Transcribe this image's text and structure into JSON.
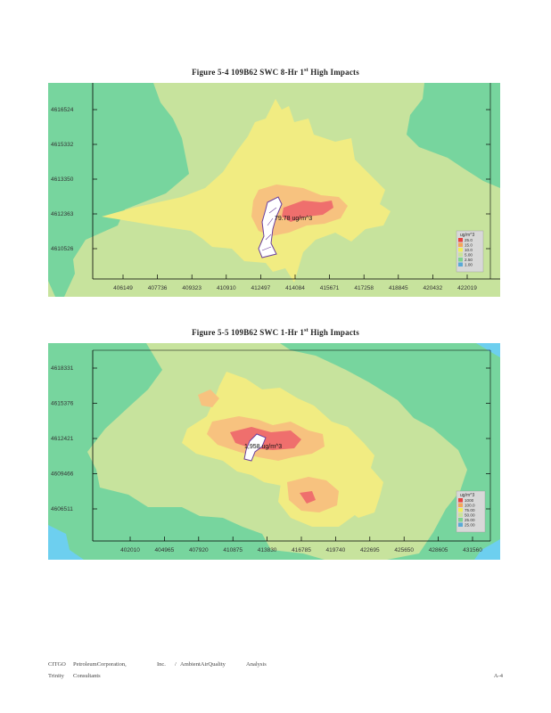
{
  "figures": [
    {
      "title_prefix": "Figure 5-4 109B62 SWC 8-Hr 1",
      "title_sup": "st",
      "title_suffix": " High Impacts",
      "y_ticks": [
        "4616524",
        "4615332",
        "4613350",
        "4612363",
        "4610526"
      ],
      "x_ticks": [
        "406149",
        "407736",
        "409323",
        "410910",
        "412497",
        "414084",
        "415671",
        "417258",
        "418845",
        "420432",
        "422019"
      ],
      "peak_label": "79.78 ug/m^3",
      "legend": {
        "title": "ug/m^3",
        "items": [
          {
            "label": "25.0",
            "color": "#e8413f"
          },
          {
            "label": "15.0",
            "color": "#f4a55a"
          },
          {
            "label": "10.0",
            "color": "#eeee5a"
          },
          {
            "label": "5.00",
            "color": "#c9e39a"
          },
          {
            "label": "2.50",
            "color": "#7ed38f"
          },
          {
            "label": "1.00",
            "color": "#5aa9d6"
          }
        ]
      },
      "colors": {
        "bg": "#77d59e",
        "c1": "#c7e39d",
        "c2": "#f1ec82",
        "c3": "#f7c27f",
        "c4": "#ef6f6d"
      }
    },
    {
      "title_prefix": "Figure 5-5 109B62 SWC 1-Hr 1",
      "title_sup": "st",
      "title_suffix": " High Impacts",
      "y_ticks": [
        "4618331",
        "4615376",
        "4612421",
        "4609466",
        "4606511"
      ],
      "x_ticks": [
        "402010",
        "404965",
        "407920",
        "410875",
        "413830",
        "416785",
        "419740",
        "422695",
        "425650",
        "428605",
        "431560"
      ],
      "peak_label": "1,958 ug/m^3",
      "legend": {
        "title": "ug/m^3",
        "items": [
          {
            "label": "1000",
            "color": "#e8413f"
          },
          {
            "label": "100.0",
            "color": "#f4a55a"
          },
          {
            "label": "75.00",
            "color": "#eeee5a"
          },
          {
            "label": "50.00",
            "color": "#c9e39a"
          },
          {
            "label": "25.00",
            "color": "#7ed38f"
          },
          {
            "label": "25.00",
            "color": "#5aa9d6"
          }
        ]
      },
      "colors": {
        "bg": "#77d59e",
        "c1": "#c7e39d",
        "c2": "#f1ec82",
        "c3": "#f7c27f",
        "c4": "#ef6f6d"
      }
    }
  ],
  "footer": {
    "row1": [
      "CITGO",
      "PetroleumCorporation,",
      "Inc.",
      "/",
      "AmbientAirQuality",
      "Analysis"
    ],
    "row2": [
      "Trinity",
      "Consultants"
    ],
    "page_num": "A-4"
  }
}
